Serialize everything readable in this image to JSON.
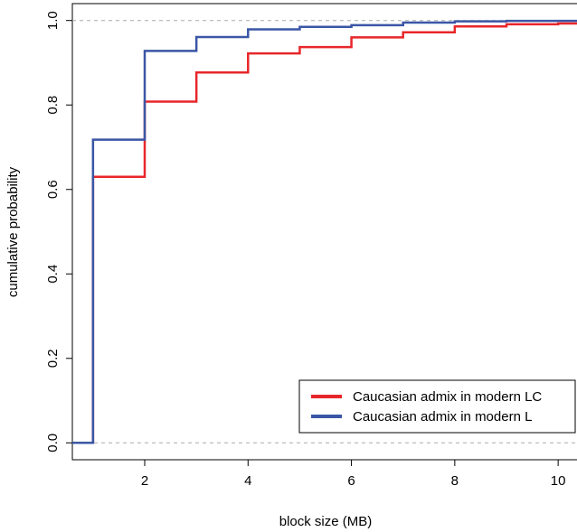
{
  "chart_data": {
    "type": "line",
    "step": true,
    "title": "",
    "xlabel": "block size (MB)",
    "ylabel": "cumulative probability",
    "xlim": [
      0.6,
      10.4
    ],
    "ylim": [
      -0.04,
      1.04
    ],
    "xticks": [
      2,
      4,
      6,
      8,
      10
    ],
    "xtick_labels": [
      "2",
      "4",
      "6",
      "8",
      "10"
    ],
    "yticks": [
      0.0,
      0.2,
      0.4,
      0.6,
      0.8,
      1.0
    ],
    "ytick_labels": [
      "0.0",
      "0.2",
      "0.4",
      "0.6",
      "0.8",
      "1.0"
    ],
    "reference_lines": [
      0,
      1
    ],
    "grid": false,
    "legend_position": "bottom-right",
    "series": [
      {
        "name": "Caucasian admix in modern LC",
        "color": "#e8262a",
        "x": [
          0.6,
          1,
          2,
          3,
          4,
          5,
          6,
          7,
          8,
          9,
          10,
          10.4
        ],
        "y": [
          0.0,
          0.63,
          0.808,
          0.877,
          0.922,
          0.937,
          0.96,
          0.972,
          0.986,
          0.991,
          0.993,
          0.993
        ]
      },
      {
        "name": "Caucasian admix in modern L",
        "color": "#3a56a5",
        "x": [
          0.6,
          1,
          2,
          3,
          4,
          5,
          6,
          7,
          8,
          9,
          10,
          10.4
        ],
        "y": [
          0.0,
          0.718,
          0.928,
          0.961,
          0.979,
          0.985,
          0.989,
          0.995,
          0.998,
          0.999,
          0.999,
          0.999
        ]
      }
    ]
  }
}
